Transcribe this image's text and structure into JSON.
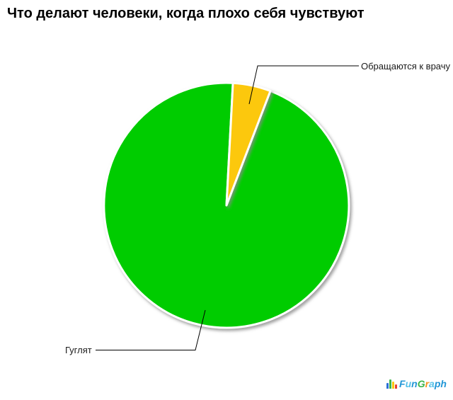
{
  "chart_data": {
    "type": "pie",
    "title": "Что делают человеки, когда плохо себя чувствуют",
    "slices": [
      {
        "label": "Гуглят",
        "value": 95,
        "color": "#00cc00"
      },
      {
        "label": "Обращаются к врачу",
        "value": 5,
        "color": "#fcc811"
      }
    ],
    "unit": "percent",
    "legend_position": "callout-labels",
    "background": "#ffffff",
    "leader_line_color": "#000000"
  },
  "logo": {
    "name": "FunGraph",
    "letters": [
      {
        "ch": "F",
        "color": "#2196d6"
      },
      {
        "ch": "u",
        "color": "#55c1e9"
      },
      {
        "ch": "n",
        "color": "#2196d6"
      },
      {
        "ch": "G",
        "color": "#3cb54a"
      },
      {
        "ch": "r",
        "color": "#f7941d"
      },
      {
        "ch": "a",
        "color": "#55c1e9"
      },
      {
        "ch": "p",
        "color": "#2196d6"
      },
      {
        "ch": "h",
        "color": "#2196d6"
      }
    ],
    "icon_bars": [
      {
        "color": "#2a6fd6",
        "h": 8
      },
      {
        "color": "#3cb54a",
        "h": 13
      },
      {
        "color": "#fcc811",
        "h": 10
      },
      {
        "color": "#e8412c",
        "h": 6
      }
    ]
  }
}
